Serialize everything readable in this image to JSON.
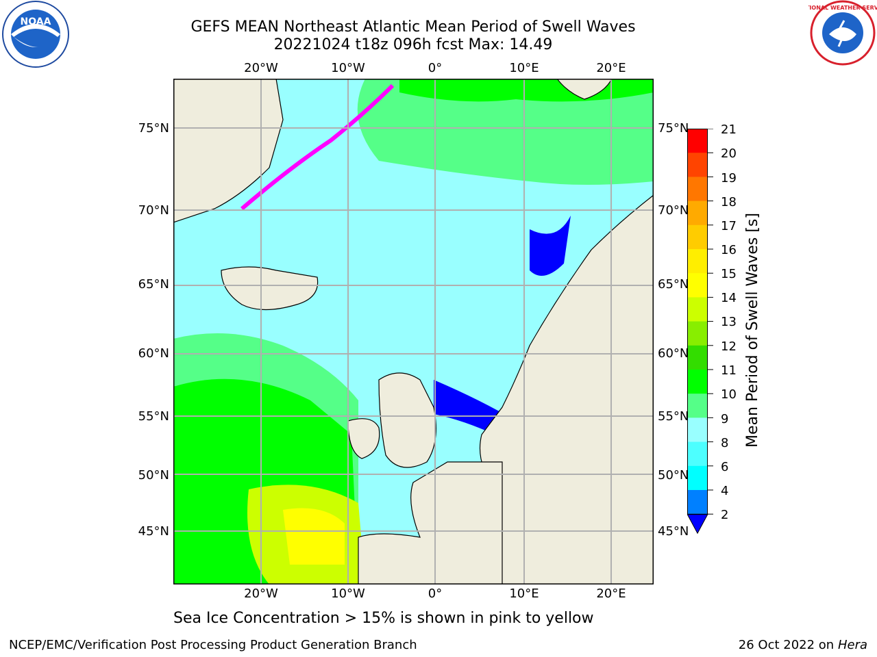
{
  "header": {
    "title_line1": "GEFS MEAN Northeast Atlantic Mean Period of Swell Waves",
    "title_line2": "20221024 t18z 096h fcst   Max: 14.49"
  },
  "map": {
    "lon_labels": [
      "20°W",
      "10°W",
      "0°",
      "10°E",
      "20°E"
    ],
    "lat_labels": [
      "75°N",
      "70°N",
      "65°N",
      "60°N",
      "55°N",
      "50°N",
      "45°N"
    ],
    "colors": {
      "land": "#efeddd",
      "ocean_light": "#99ffff",
      "grid": "#b0b0b0",
      "ice": "#ff00ff"
    }
  },
  "colorbar": {
    "title": "Mean Period of Swell Waves [s]",
    "ticks": [
      "2",
      "4",
      "6",
      "8",
      "9",
      "10",
      "11",
      "12",
      "13",
      "14",
      "15",
      "16",
      "17",
      "18",
      "19",
      "20",
      "21"
    ],
    "colors": [
      "#0000ff",
      "#0080ff",
      "#00ffff",
      "#4dffff",
      "#99ffff",
      "#55ff88",
      "#00ff00",
      "#33dd00",
      "#88ee00",
      "#ccff00",
      "#ffff00",
      "#ffee00",
      "#ffcc00",
      "#ffaa00",
      "#ff7700",
      "#ff4400",
      "#ff0000"
    ]
  },
  "caption": "Sea Ice Concentration > 15% is shown in pink to yellow",
  "footer": {
    "left": "NCEP/EMC/Verification Post Processing Product Generation Branch",
    "right_prefix": "26 Oct 2022 on ",
    "right_host": "Hera"
  },
  "logos": {
    "noaa_text": "NOAA",
    "nws_text": "NATIONAL WEATHER SERVICE"
  }
}
